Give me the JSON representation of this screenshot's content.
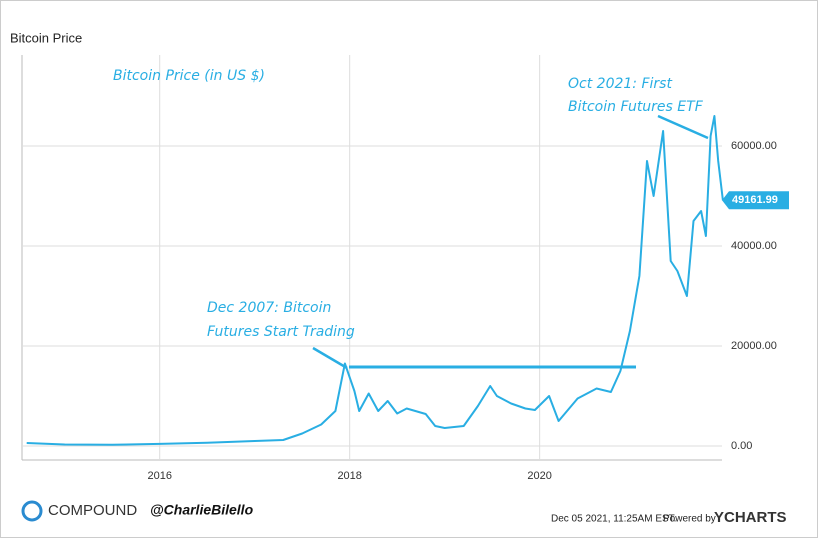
{
  "chart_data": {
    "type": "line",
    "title": "Bitcoin Price",
    "annotations": [
      {
        "lines": [
          "Bitcoin Price (in US $)"
        ]
      },
      {
        "lines": [
          "Oct 2021: First",
          "Bitcoin Futures ETF"
        ]
      },
      {
        "lines": [
          "Dec 2007: Bitcoin",
          "Futures Start Trading"
        ]
      }
    ],
    "x": [
      2014.6,
      2015.0,
      2015.5,
      2016.0,
      2016.5,
      2017.0,
      2017.3,
      2017.5,
      2017.7,
      2017.85,
      2017.95,
      2018.05,
      2018.1,
      2018.2,
      2018.3,
      2018.4,
      2018.5,
      2018.6,
      2018.8,
      2018.9,
      2019.0,
      2019.2,
      2019.35,
      2019.48,
      2019.55,
      2019.7,
      2019.85,
      2019.95,
      2020.1,
      2020.2,
      2020.4,
      2020.6,
      2020.75,
      2020.85,
      2020.95,
      2021.05,
      2021.13,
      2021.2,
      2021.3,
      2021.38,
      2021.45,
      2021.55,
      2021.62,
      2021.7,
      2021.75,
      2021.8,
      2021.84,
      2021.88,
      2021.93
    ],
    "values": [
      600,
      300,
      250,
      430,
      650,
      1000,
      1200,
      2500,
      4300,
      7000,
      16500,
      11000,
      7000,
      10500,
      7000,
      9000,
      6500,
      7500,
      6400,
      4000,
      3600,
      4000,
      8000,
      12000,
      10000,
      8500,
      7500,
      7200,
      10000,
      5000,
      9500,
      11500,
      10800,
      15000,
      23000,
      34000,
      57000,
      50000,
      63000,
      37000,
      35000,
      30000,
      45000,
      47000,
      42000,
      62000,
      66000,
      57000,
      49161.99
    ],
    "color": "#29aee3",
    "xlim": [
      2014.55,
      2021.92
    ],
    "xticks": [
      2016,
      2018,
      2020
    ],
    "ylim": [
      -2800,
      78200
    ],
    "yticks": [
      {
        "value": 0,
        "label": "0.00"
      },
      {
        "value": 20000,
        "label": "20000.00"
      },
      {
        "value": 40000,
        "label": "40000.00"
      },
      {
        "value": 60000,
        "label": "60000.00"
      }
    ],
    "grid": true,
    "brand": "COMPOUND",
    "handle": "@CharlieBilello",
    "timestamp": "Dec 05 2021, 11:25AM EST.",
    "powered": "Powered by",
    "provider": "YCHARTS"
  }
}
